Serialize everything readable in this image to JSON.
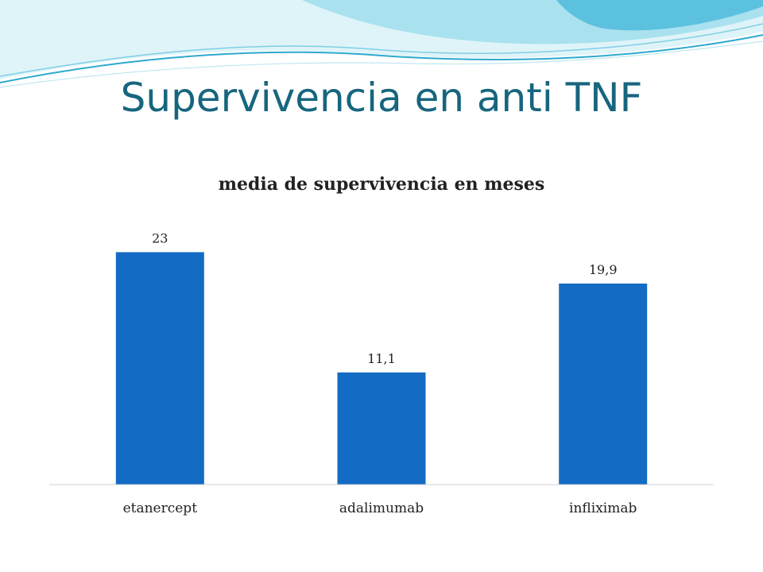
{
  "slide": {
    "title": "Supervivencia en anti TNF"
  },
  "colors": {
    "title": "#17657e",
    "bar": "#136bc4",
    "wave_light": "#cdeef6",
    "wave_mid": "#8fd6ea",
    "wave_dark": "#2ea9cf"
  },
  "chart_data": {
    "type": "bar",
    "title": "media de supervivencia en meses",
    "categories": [
      "etanercept",
      "adalimumab",
      "infliximab"
    ],
    "values": [
      23,
      11.1,
      19.9
    ],
    "value_labels": [
      "23",
      "11,1",
      "19,9"
    ],
    "xlabel": "",
    "ylabel": "",
    "ylim": [
      0,
      25
    ],
    "grid": false,
    "legend": "none"
  }
}
